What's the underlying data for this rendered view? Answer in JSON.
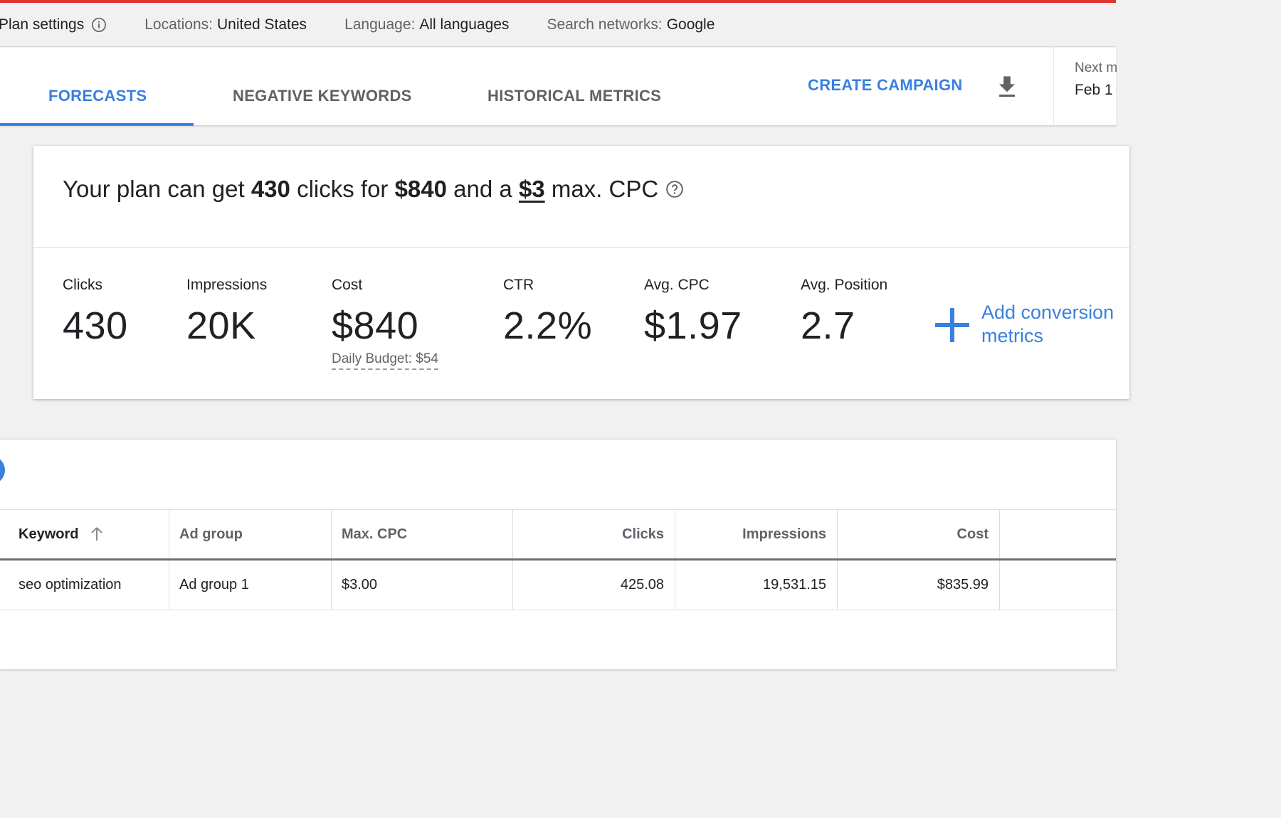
{
  "settings_bar": {
    "title": "Plan settings",
    "locations_label": "Locations:",
    "locations_value": "United States",
    "language_label": "Language:",
    "language_value": "All languages",
    "networks_label": "Search networks:",
    "networks_value": "Google"
  },
  "tabs": [
    {
      "label": "FORECASTS",
      "active": true
    },
    {
      "label": "NEGATIVE KEYWORDS",
      "active": false
    },
    {
      "label": "HISTORICAL METRICS",
      "active": false
    }
  ],
  "toolbar": {
    "create_campaign": "CREATE CAMPAIGN",
    "download_icon": "download-icon",
    "date_label": "Next m",
    "date_value": "Feb 1"
  },
  "summary": {
    "prefix": "Your plan can get",
    "clicks": "430",
    "mid1": "clicks for",
    "cost": "$840",
    "mid2": "and a",
    "max_cpc": "$3",
    "suffix": "max. CPC"
  },
  "metrics": [
    {
      "label": "Clicks",
      "value": "430"
    },
    {
      "label": "Impressions",
      "value": "20K"
    },
    {
      "label": "Cost",
      "value": "$840"
    },
    {
      "label": "CTR",
      "value": "2.2%"
    },
    {
      "label": "Avg. CPC",
      "value": "$1.97"
    },
    {
      "label": "Avg. Position",
      "value": "2.7"
    }
  ],
  "daily_budget": "Daily Budget: $54",
  "add_conversion": {
    "line1": "Add conversion",
    "line2": "metrics"
  },
  "table": {
    "headers": [
      "Keyword",
      "Ad group",
      "Max. CPC",
      "Clicks",
      "Impressions",
      "Cost"
    ],
    "rows": [
      [
        "seo optimization",
        "Ad group 1",
        "$3.00",
        "425.08",
        "19,531.15",
        "$835.99"
      ]
    ]
  },
  "colors": {
    "accent": "#3a80df",
    "top_bar": "#e0322f",
    "background": "#f1f1f1"
  }
}
